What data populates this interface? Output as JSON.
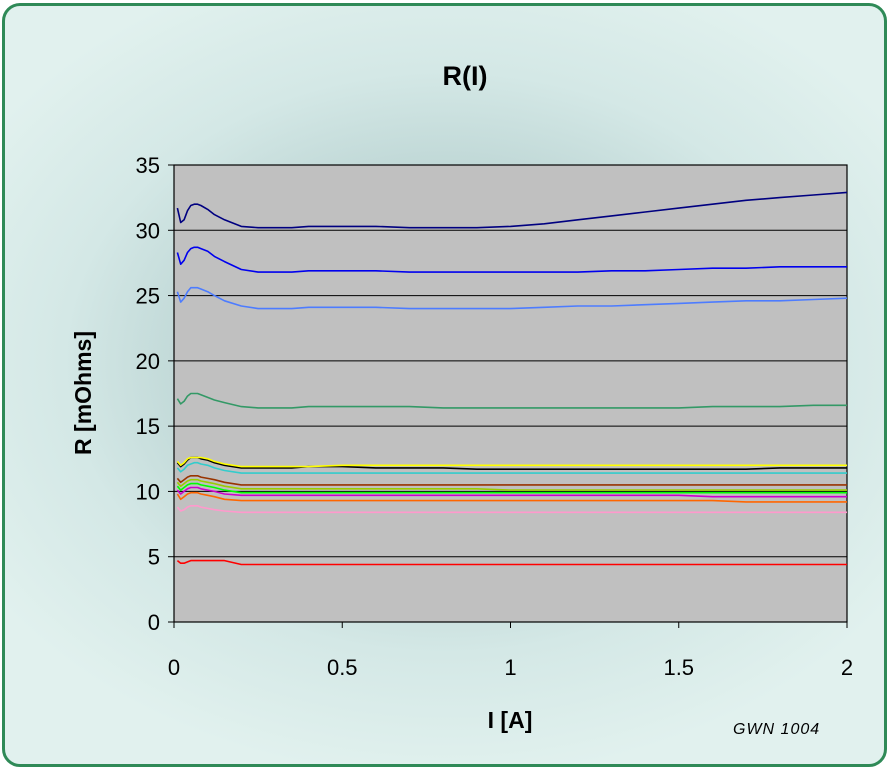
{
  "chart_data": {
    "type": "line",
    "title": "R(I)",
    "xlabel": "I [A]",
    "ylabel": "R [mOhms]",
    "xlim": [
      0,
      2
    ],
    "ylim": [
      0,
      35
    ],
    "x_ticks": [
      "0",
      "0.5",
      "1",
      "1.5",
      "2"
    ],
    "y_ticks": [
      "0",
      "5",
      "10",
      "15",
      "20",
      "25",
      "30",
      "35"
    ],
    "grid": "horizontal",
    "legend": "none",
    "plot_background": "#c0c0c0",
    "annotation": "GWN 1004",
    "x": [
      0.01,
      0.02,
      0.03,
      0.04,
      0.05,
      0.06,
      0.07,
      0.08,
      0.1,
      0.12,
      0.15,
      0.2,
      0.25,
      0.3,
      0.35,
      0.4,
      0.5,
      0.6,
      0.7,
      0.8,
      0.9,
      1.0,
      1.1,
      1.2,
      1.3,
      1.4,
      1.5,
      1.6,
      1.7,
      1.8,
      1.9,
      2.0
    ],
    "series": [
      {
        "color": "#000080",
        "values": [
          31.7,
          30.6,
          30.8,
          31.5,
          31.9,
          32.0,
          32.0,
          31.9,
          31.6,
          31.2,
          30.8,
          30.3,
          30.2,
          30.2,
          30.2,
          30.3,
          30.3,
          30.3,
          30.2,
          30.2,
          30.2,
          30.3,
          30.5,
          30.8,
          31.1,
          31.4,
          31.7,
          32.0,
          32.3,
          32.5,
          32.7,
          32.9
        ]
      },
      {
        "color": "#0000ee",
        "values": [
          28.3,
          27.4,
          27.7,
          28.3,
          28.6,
          28.7,
          28.7,
          28.6,
          28.4,
          28.0,
          27.6,
          27.0,
          26.8,
          26.8,
          26.8,
          26.9,
          26.9,
          26.9,
          26.8,
          26.8,
          26.8,
          26.8,
          26.8,
          26.8,
          26.9,
          26.9,
          27.0,
          27.1,
          27.1,
          27.2,
          27.2,
          27.2
        ]
      },
      {
        "color": "#4d7cff",
        "values": [
          25.3,
          24.5,
          24.8,
          25.3,
          25.6,
          25.6,
          25.6,
          25.5,
          25.3,
          25.0,
          24.6,
          24.2,
          24.0,
          24.0,
          24.0,
          24.1,
          24.1,
          24.1,
          24.0,
          24.0,
          24.0,
          24.0,
          24.1,
          24.2,
          24.2,
          24.3,
          24.4,
          24.5,
          24.6,
          24.6,
          24.7,
          24.8
        ]
      },
      {
        "color": "#339966",
        "values": [
          17.1,
          16.7,
          16.9,
          17.3,
          17.5,
          17.5,
          17.5,
          17.4,
          17.2,
          17.0,
          16.8,
          16.5,
          16.4,
          16.4,
          16.4,
          16.5,
          16.5,
          16.5,
          16.5,
          16.4,
          16.4,
          16.4,
          16.4,
          16.4,
          16.4,
          16.4,
          16.4,
          16.5,
          16.5,
          16.5,
          16.6,
          16.6
        ]
      },
      {
        "color": "#000000",
        "values": [
          12.2,
          11.9,
          12.1,
          12.4,
          12.6,
          12.6,
          12.6,
          12.5,
          12.4,
          12.2,
          12.0,
          11.8,
          11.8,
          11.8,
          11.8,
          11.9,
          11.9,
          11.8,
          11.8,
          11.8,
          11.7,
          11.7,
          11.7,
          11.7,
          11.7,
          11.7,
          11.7,
          11.7,
          11.7,
          11.8,
          11.8,
          11.8
        ]
      },
      {
        "color": "#ffff00",
        "values": [
          12.3,
          12.0,
          12.2,
          12.5,
          12.6,
          12.6,
          12.6,
          12.6,
          12.5,
          12.3,
          12.1,
          11.9,
          11.9,
          11.9,
          11.9,
          11.9,
          12.0,
          12.0,
          12.0,
          12.0,
          12.0,
          12.0,
          12.0,
          12.0,
          12.0,
          12.0,
          12.0,
          12.0,
          12.0,
          12.0,
          12.0,
          12.0
        ]
      },
      {
        "color": "#33cccc",
        "values": [
          11.8,
          11.5,
          11.7,
          12.0,
          12.1,
          12.2,
          12.2,
          12.1,
          12.0,
          11.8,
          11.6,
          11.4,
          11.4,
          11.4,
          11.4,
          11.4,
          11.4,
          11.4,
          11.4,
          11.4,
          11.4,
          11.4,
          11.4,
          11.4,
          11.4,
          11.4,
          11.4,
          11.4,
          11.4,
          11.4,
          11.4,
          11.4
        ]
      },
      {
        "color": "#993300",
        "values": [
          11.0,
          10.7,
          10.9,
          11.1,
          11.2,
          11.2,
          11.2,
          11.1,
          11.0,
          10.9,
          10.7,
          10.5,
          10.5,
          10.5,
          10.5,
          10.5,
          10.5,
          10.5,
          10.5,
          10.5,
          10.5,
          10.5,
          10.5,
          10.5,
          10.5,
          10.5,
          10.5,
          10.5,
          10.5,
          10.5,
          10.5,
          10.5
        ]
      },
      {
        "color": "#99cc00",
        "values": [
          10.7,
          10.4,
          10.6,
          10.8,
          10.9,
          10.9,
          10.9,
          10.8,
          10.7,
          10.6,
          10.4,
          10.2,
          10.2,
          10.2,
          10.2,
          10.2,
          10.2,
          10.2,
          10.2,
          10.2,
          10.2,
          10.1,
          10.1,
          10.1,
          10.1,
          10.1,
          10.1,
          10.1,
          10.1,
          10.1,
          10.1,
          10.1
        ]
      },
      {
        "color": "#00ff00",
        "values": [
          10.4,
          10.1,
          10.3,
          10.5,
          10.6,
          10.6,
          10.6,
          10.5,
          10.4,
          10.3,
          10.1,
          9.9,
          9.9,
          9.9,
          9.9,
          9.9,
          9.9,
          9.9,
          9.9,
          9.9,
          9.9,
          9.9,
          9.9,
          9.9,
          9.9,
          9.9,
          9.9,
          9.9,
          9.9,
          9.9,
          9.9,
          9.9
        ]
      },
      {
        "color": "#cc00cc",
        "values": [
          10.1,
          9.8,
          10.0,
          10.2,
          10.3,
          10.3,
          10.3,
          10.2,
          10.1,
          10.0,
          9.8,
          9.7,
          9.7,
          9.7,
          9.7,
          9.7,
          9.7,
          9.7,
          9.7,
          9.7,
          9.7,
          9.7,
          9.7,
          9.7,
          9.7,
          9.7,
          9.7,
          9.6,
          9.6,
          9.6,
          9.6,
          9.6
        ]
      },
      {
        "color": "#ff6600",
        "values": [
          9.8,
          9.4,
          9.6,
          9.8,
          9.9,
          9.9,
          9.9,
          9.8,
          9.7,
          9.6,
          9.4,
          9.3,
          9.3,
          9.3,
          9.3,
          9.3,
          9.3,
          9.3,
          9.3,
          9.3,
          9.3,
          9.3,
          9.3,
          9.3,
          9.3,
          9.3,
          9.3,
          9.3,
          9.2,
          9.2,
          9.2,
          9.2
        ]
      },
      {
        "color": "#ff99cc",
        "values": [
          8.8,
          8.5,
          8.6,
          8.8,
          8.9,
          8.9,
          8.9,
          8.8,
          8.7,
          8.6,
          8.5,
          8.4,
          8.4,
          8.4,
          8.4,
          8.4,
          8.4,
          8.4,
          8.4,
          8.4,
          8.4,
          8.4,
          8.4,
          8.4,
          8.4,
          8.4,
          8.4,
          8.4,
          8.4,
          8.4,
          8.4,
          8.4
        ]
      },
      {
        "color": "#ff0000",
        "values": [
          4.7,
          4.5,
          4.5,
          4.6,
          4.7,
          4.7,
          4.7,
          4.7,
          4.7,
          4.7,
          4.7,
          4.4,
          4.4,
          4.4,
          4.4,
          4.4,
          4.4,
          4.4,
          4.4,
          4.4,
          4.4,
          4.4,
          4.4,
          4.4,
          4.4,
          4.4,
          4.4,
          4.4,
          4.4,
          4.4,
          4.4,
          4.4
        ]
      }
    ]
  }
}
